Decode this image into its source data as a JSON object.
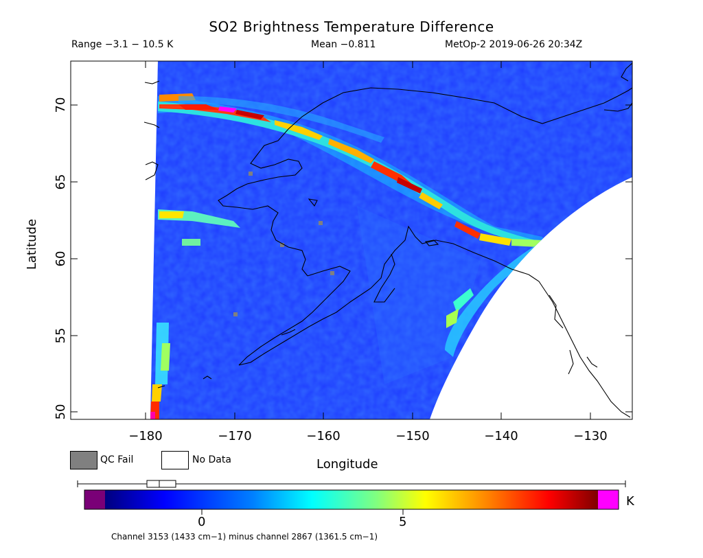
{
  "header": {
    "title": "SO2 Brightness Temperature Difference",
    "range": "Range −3.1 − 10.5 K",
    "mean": "Mean −0.811",
    "satellite": "MetOp-2 2019-06-26 20:34Z"
  },
  "map": {
    "x_axis": {
      "label": "Longitude",
      "ticks": [
        "−180",
        "−170",
        "−160",
        "−150",
        "−140",
        "−130"
      ],
      "range": [
        -188,
        -125
      ]
    },
    "y_axis": {
      "label": "Latitude",
      "ticks": [
        "50",
        "55",
        "60",
        "65",
        "70"
      ],
      "range": [
        49.5,
        72.8
      ]
    },
    "colors": {
      "background_field": "#1e3cff",
      "qc_fail": "#808080",
      "no_data": "#ffffff",
      "coastline": "#000000"
    }
  },
  "legend": {
    "qc_fail": "QC Fail",
    "no_data": "No Data"
  },
  "colorbar": {
    "unit": "K",
    "tick_labels": [
      "0",
      "5"
    ],
    "tick_values": [
      0,
      5
    ],
    "range": [
      -3.1,
      10.5
    ],
    "under_color": "#7a0077",
    "over_color": "#ff00ff",
    "stops": [
      "#00007f",
      "#0000ff",
      "#0080ff",
      "#00ffff",
      "#80ff80",
      "#ffff00",
      "#ff8000",
      "#ff0000",
      "#7f0000"
    ]
  },
  "footer": "Channel 3153 (1433 cm−1) minus channel 2867 (1361.5 cm−1)"
}
